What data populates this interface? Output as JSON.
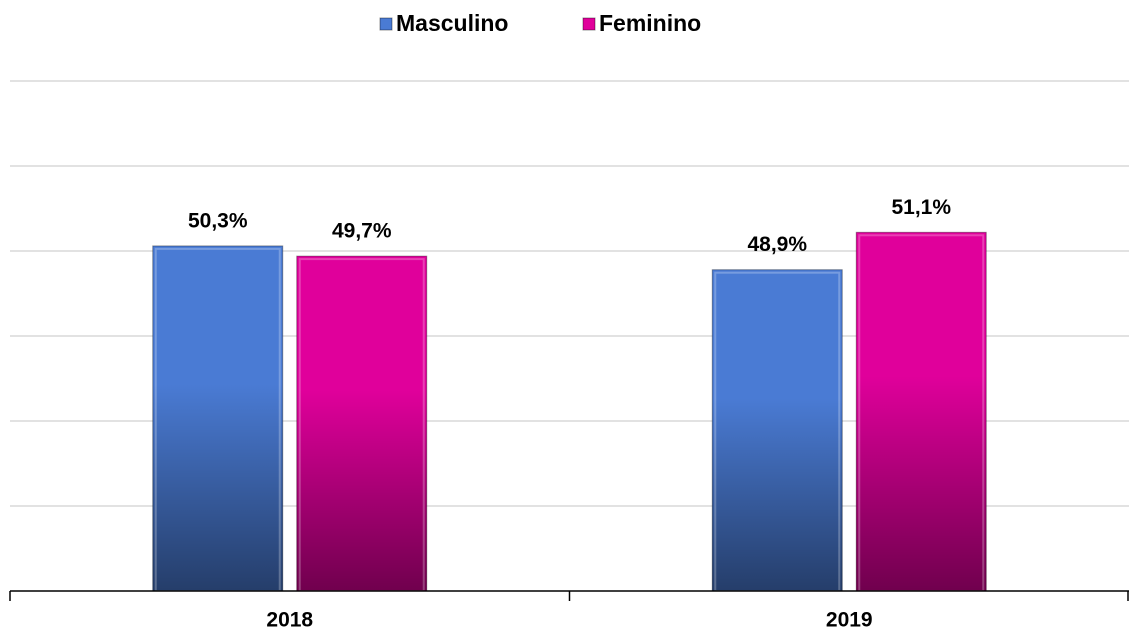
{
  "chart_data": {
    "type": "bar",
    "categories": [
      "2018",
      "2019"
    ],
    "series": [
      {
        "name": "Masculino",
        "color": "#4a7bd4",
        "values": [
          50.3,
          48.9
        ],
        "value_labels": [
          "50,3%",
          "48,9%"
        ]
      },
      {
        "name": "Feminino",
        "color": "#e0009b",
        "values": [
          49.7,
          51.1
        ],
        "value_labels": [
          "49,7%",
          "51,1%"
        ]
      }
    ],
    "ylim": [
      30,
      60
    ],
    "yticks": [
      30,
      35,
      40,
      45,
      50,
      55,
      60
    ],
    "grid": true,
    "legend": "top"
  }
}
